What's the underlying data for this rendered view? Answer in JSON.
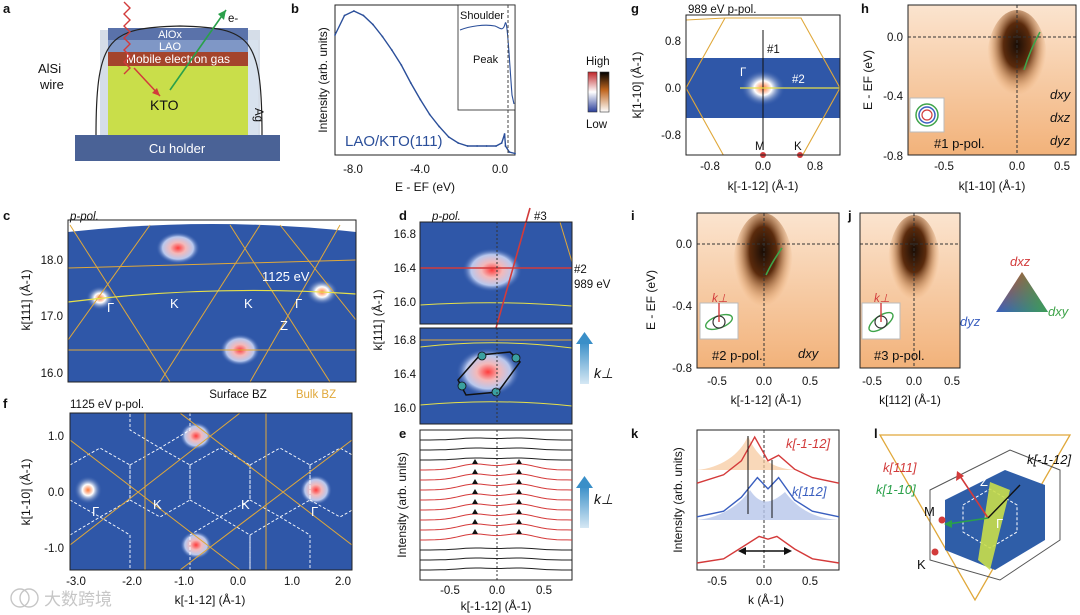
{
  "panels": {
    "a": {
      "letter": "a",
      "layers": [
        "AlOx",
        "LAO",
        "Mobile electron gas",
        "KTO",
        "Cu holder"
      ],
      "wire_label_1": "AlSi",
      "wire_label_2": "wire",
      "ag_label": "Ag",
      "electron_label": "e-"
    },
    "b": {
      "letter": "b",
      "sample": "LAO/KTO(111)",
      "ylabel": "Intensity (arb. units)",
      "xlabel": "E - EF (eV)",
      "xticks": [
        "-8.0",
        "-4.0",
        "0.0"
      ],
      "inset_labels": [
        "Shoulder",
        "Peak"
      ]
    },
    "colorbar": {
      "high": "High",
      "low": "Low"
    },
    "c": {
      "letter": "c",
      "pol": "p-pol.",
      "energy": "1125 eV",
      "ylabel": "k[111] (Å-1)",
      "yticks": [
        "18.0",
        "17.0",
        "16.0"
      ],
      "points": [
        "Γ",
        "K",
        "K",
        "Γ",
        "Z"
      ]
    },
    "d": {
      "letter": "d",
      "pol": "p-pol.",
      "cut3": "#3",
      "cut2": "#2",
      "energy": "989 eV",
      "ylabel": "k[111] (Å-1)",
      "yticks_top": [
        "16.8",
        "16.4",
        "16.0"
      ],
      "yticks_bot": [
        "16.8",
        "16.4",
        "16.0"
      ],
      "kperp": "k⊥"
    },
    "e": {
      "letter": "e",
      "ylabel": "Intensity (arb. units)",
      "xlabel": "k[-1-12] (Å-1)",
      "xticks": [
        "-0.5",
        "0.0",
        "0.5"
      ],
      "kperp": "k⊥"
    },
    "f": {
      "letter": "f",
      "title": "1125 eV p-pol.",
      "surface_bz": "Surface BZ",
      "bulk_bz": "Bulk BZ",
      "ylabel": "k[1-10] (Å-1)",
      "xlabel": "k[-1-12] (Å-1)",
      "xticks": [
        "-3.0",
        "-2.0",
        "-1.0",
        "0.0",
        "1.0",
        "2.0"
      ],
      "yticks": [
        "1.0",
        "0.0",
        "-1.0"
      ],
      "points": [
        "Γ",
        "K",
        "K",
        "Γ"
      ]
    },
    "g": {
      "letter": "g",
      "title": "989 eV p-pol.",
      "ylabel": "k[1-10] (Å-1)",
      "xlabel": "k[-1-12] (Å-1)",
      "xticks": [
        "-0.8",
        "0.0",
        "0.8"
      ],
      "yticks": [
        "0.8",
        "0.0",
        "-0.8"
      ],
      "labels": [
        "#1",
        "#2",
        "Γ",
        "M",
        "K"
      ]
    },
    "h": {
      "letter": "h",
      "ylabel": "E - EF (eV)",
      "xlabel": "k[1-10] (Å-1)",
      "xticks": [
        "-0.5",
        "0.0",
        "0.5"
      ],
      "yticks": [
        "0.0",
        "-0.4",
        "-0.8"
      ],
      "cut": "#1 p-pol.",
      "orbitals": [
        "dxy",
        "dxz",
        "dyz"
      ]
    },
    "i": {
      "letter": "i",
      "ylabel": "E - EF (eV)",
      "xlabel": "k[-1-12] (Å-1)",
      "xticks": [
        "-0.5",
        "0.0",
        "0.5"
      ],
      "yticks": [
        "0.0",
        "-0.4",
        "-0.8"
      ],
      "cut": "#2 p-pol.",
      "orbital": "dxy",
      "kperp": "k⊥"
    },
    "j": {
      "letter": "j",
      "xlabel": "k[112] (Å-1)",
      "xticks": [
        "-0.5",
        "0.0",
        "0.5"
      ],
      "cut": "#3 p-pol.",
      "kperp": "k⊥"
    },
    "legend": {
      "top": "dxz",
      "left": "dyz",
      "right": "dxy"
    },
    "k": {
      "letter": "k",
      "ylabel": "Intensity (arb. units)",
      "xlabel": "k (Å-1)",
      "xticks": [
        "-0.5",
        "0.0",
        "0.5"
      ],
      "curve_labels": [
        "k[-1-12]",
        "k[112]"
      ]
    },
    "l": {
      "letter": "l",
      "labels": [
        "k[111]",
        "k[-1-12]",
        "k[1-10]",
        "M",
        "K",
        "Z",
        "Γ"
      ]
    }
  },
  "watermark": "大数跨境",
  "colors": {
    "map_bg": "#2f57a8",
    "bz_line": "#e0a83a",
    "band": "#1f3d9a",
    "dark_orange": "#c2611c",
    "light_orange": "#f6c79b",
    "red": "#d43a3a",
    "green": "#3fa44a"
  },
  "chart_data": [
    {
      "type": "line",
      "title": "",
      "xlabel": "E - EF (eV)",
      "ylabel": "Intensity (arb. units)",
      "xlim": [
        -9,
        0.5
      ],
      "ylim": [
        0,
        1
      ],
      "series": [
        {
          "name": "LAO/KTO(111)",
          "x": [
            -9.0,
            -8.5,
            -8.0,
            -7.5,
            -7.0,
            -6.5,
            -6.0,
            -5.5,
            -5.0,
            -4.5,
            -4.0,
            -3.5,
            -3.0,
            -2.5,
            -2.0,
            -1.5,
            -1.0,
            -0.5,
            -0.2,
            -0.05,
            0.0,
            0.2,
            0.5
          ],
          "y": [
            0.8,
            0.93,
            0.96,
            0.93,
            0.87,
            0.79,
            0.7,
            0.6,
            0.48,
            0.37,
            0.27,
            0.19,
            0.12,
            0.08,
            0.06,
            0.06,
            0.06,
            0.06,
            0.08,
            0.14,
            0.06,
            0.02,
            0.01
          ]
        }
      ]
    },
    {
      "type": "line",
      "title": "",
      "xlabel": "k (Å-1)",
      "ylabel": "Intensity (arb. units)",
      "xlim": [
        -0.8,
        0.8
      ],
      "series": [
        {
          "name": "k[-1-12]",
          "x": [
            -0.8,
            -0.5,
            -0.3,
            -0.15,
            0.0,
            0.12,
            0.3,
            0.5,
            0.8
          ],
          "y": [
            0.62,
            0.68,
            0.78,
            0.95,
            0.78,
            0.82,
            0.72,
            0.66,
            0.62
          ]
        },
        {
          "name": "k[112]",
          "x": [
            -0.8,
            -0.5,
            -0.3,
            -0.12,
            0.0,
            0.12,
            0.3,
            0.5,
            0.8
          ],
          "y": [
            0.38,
            0.42,
            0.52,
            0.66,
            0.58,
            0.66,
            0.5,
            0.42,
            0.38
          ]
        },
        {
          "name": "",
          "x": [
            -0.8,
            -0.5,
            -0.3,
            -0.1,
            0.0,
            0.1,
            0.3,
            0.5,
            0.8
          ],
          "y": [
            0.05,
            0.08,
            0.16,
            0.24,
            0.22,
            0.24,
            0.15,
            0.08,
            0.05
          ]
        }
      ]
    }
  ]
}
